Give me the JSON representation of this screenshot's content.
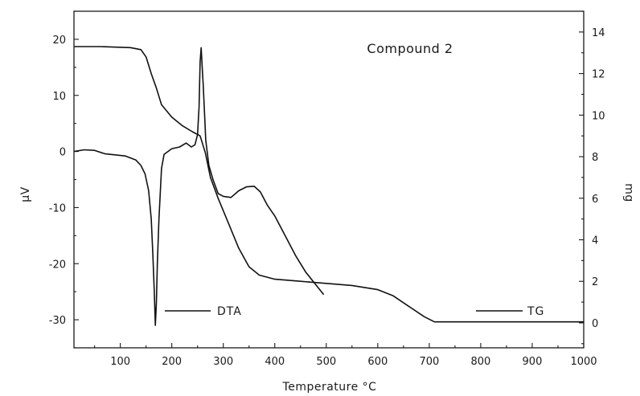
{
  "chart_data": {
    "type": "line",
    "annotation": "Compound 2",
    "xlabel": "Temperature °C",
    "ylabel_left": "μV",
    "ylabel_right": "mg",
    "xlim": [
      10,
      1000
    ],
    "ylim_left": [
      -35,
      25
    ],
    "ylim_right": [
      -1.2,
      15
    ],
    "x_ticks": [
      100,
      200,
      300,
      400,
      500,
      600,
      700,
      800,
      900,
      1000
    ],
    "y_left_ticks": [
      20,
      10,
      0,
      -10,
      -20,
      -30
    ],
    "y_right_ticks": [
      0,
      2,
      4,
      6,
      8,
      10,
      12,
      14
    ],
    "y_right_tick_labels": [
      "0",
      "2",
      "4",
      "6",
      "8",
      "10",
      "12",
      "14"
    ],
    "grid": false,
    "legend": [
      {
        "label": "DTA",
        "series": "DTA"
      },
      {
        "label": "TG",
        "series": "TG"
      }
    ],
    "series": [
      {
        "name": "DTA",
        "axis": "left",
        "points": [
          [
            10,
            0.0
          ],
          [
            30,
            0.3
          ],
          [
            50,
            0.2
          ],
          [
            70,
            -0.4
          ],
          [
            90,
            -0.6
          ],
          [
            110,
            -0.8
          ],
          [
            130,
            -1.5
          ],
          [
            140,
            -2.5
          ],
          [
            148,
            -4.0
          ],
          [
            155,
            -7.0
          ],
          [
            160,
            -12.0
          ],
          [
            163,
            -18.0
          ],
          [
            166,
            -25.0
          ],
          [
            168,
            -31.0
          ],
          [
            170,
            -27.0
          ],
          [
            172,
            -20.0
          ],
          [
            175,
            -12.0
          ],
          [
            180,
            -3.0
          ],
          [
            185,
            -0.5
          ],
          [
            200,
            0.5
          ],
          [
            215,
            0.8
          ],
          [
            228,
            1.5
          ],
          [
            238,
            0.8
          ],
          [
            245,
            1.2
          ],
          [
            250,
            3.0
          ],
          [
            253,
            8.0
          ],
          [
            255,
            16.0
          ],
          [
            257,
            18.5
          ],
          [
            259,
            15.0
          ],
          [
            261,
            12.0
          ],
          [
            263,
            8.0
          ],
          [
            266,
            2.0
          ],
          [
            272,
            -2.5
          ],
          [
            280,
            -5.0
          ],
          [
            290,
            -7.5
          ],
          [
            300,
            -8.0
          ],
          [
            315,
            -8.2
          ],
          [
            330,
            -7.0
          ],
          [
            345,
            -6.3
          ],
          [
            360,
            -6.2
          ],
          [
            372,
            -7.2
          ],
          [
            385,
            -9.5
          ],
          [
            400,
            -11.5
          ],
          [
            420,
            -15.0
          ],
          [
            440,
            -18.5
          ],
          [
            460,
            -21.5
          ],
          [
            480,
            -23.8
          ],
          [
            495,
            -25.5
          ]
        ]
      },
      {
        "name": "TG",
        "axis": "right",
        "points": [
          [
            10,
            13.3
          ],
          [
            60,
            13.3
          ],
          [
            120,
            13.25
          ],
          [
            140,
            13.15
          ],
          [
            150,
            12.8
          ],
          [
            160,
            12.0
          ],
          [
            170,
            11.3
          ],
          [
            180,
            10.5
          ],
          [
            200,
            9.9
          ],
          [
            220,
            9.5
          ],
          [
            240,
            9.2
          ],
          [
            255,
            9.0
          ],
          [
            265,
            8.2
          ],
          [
            275,
            7.0
          ],
          [
            290,
            6.0
          ],
          [
            310,
            4.8
          ],
          [
            330,
            3.6
          ],
          [
            350,
            2.7
          ],
          [
            370,
            2.3
          ],
          [
            400,
            2.1
          ],
          [
            450,
            2.0
          ],
          [
            500,
            1.9
          ],
          [
            550,
            1.8
          ],
          [
            600,
            1.6
          ],
          [
            630,
            1.3
          ],
          [
            660,
            0.8
          ],
          [
            690,
            0.3
          ],
          [
            710,
            0.05
          ],
          [
            800,
            0.05
          ],
          [
            900,
            0.05
          ],
          [
            1000,
            0.05
          ]
        ]
      }
    ]
  }
}
